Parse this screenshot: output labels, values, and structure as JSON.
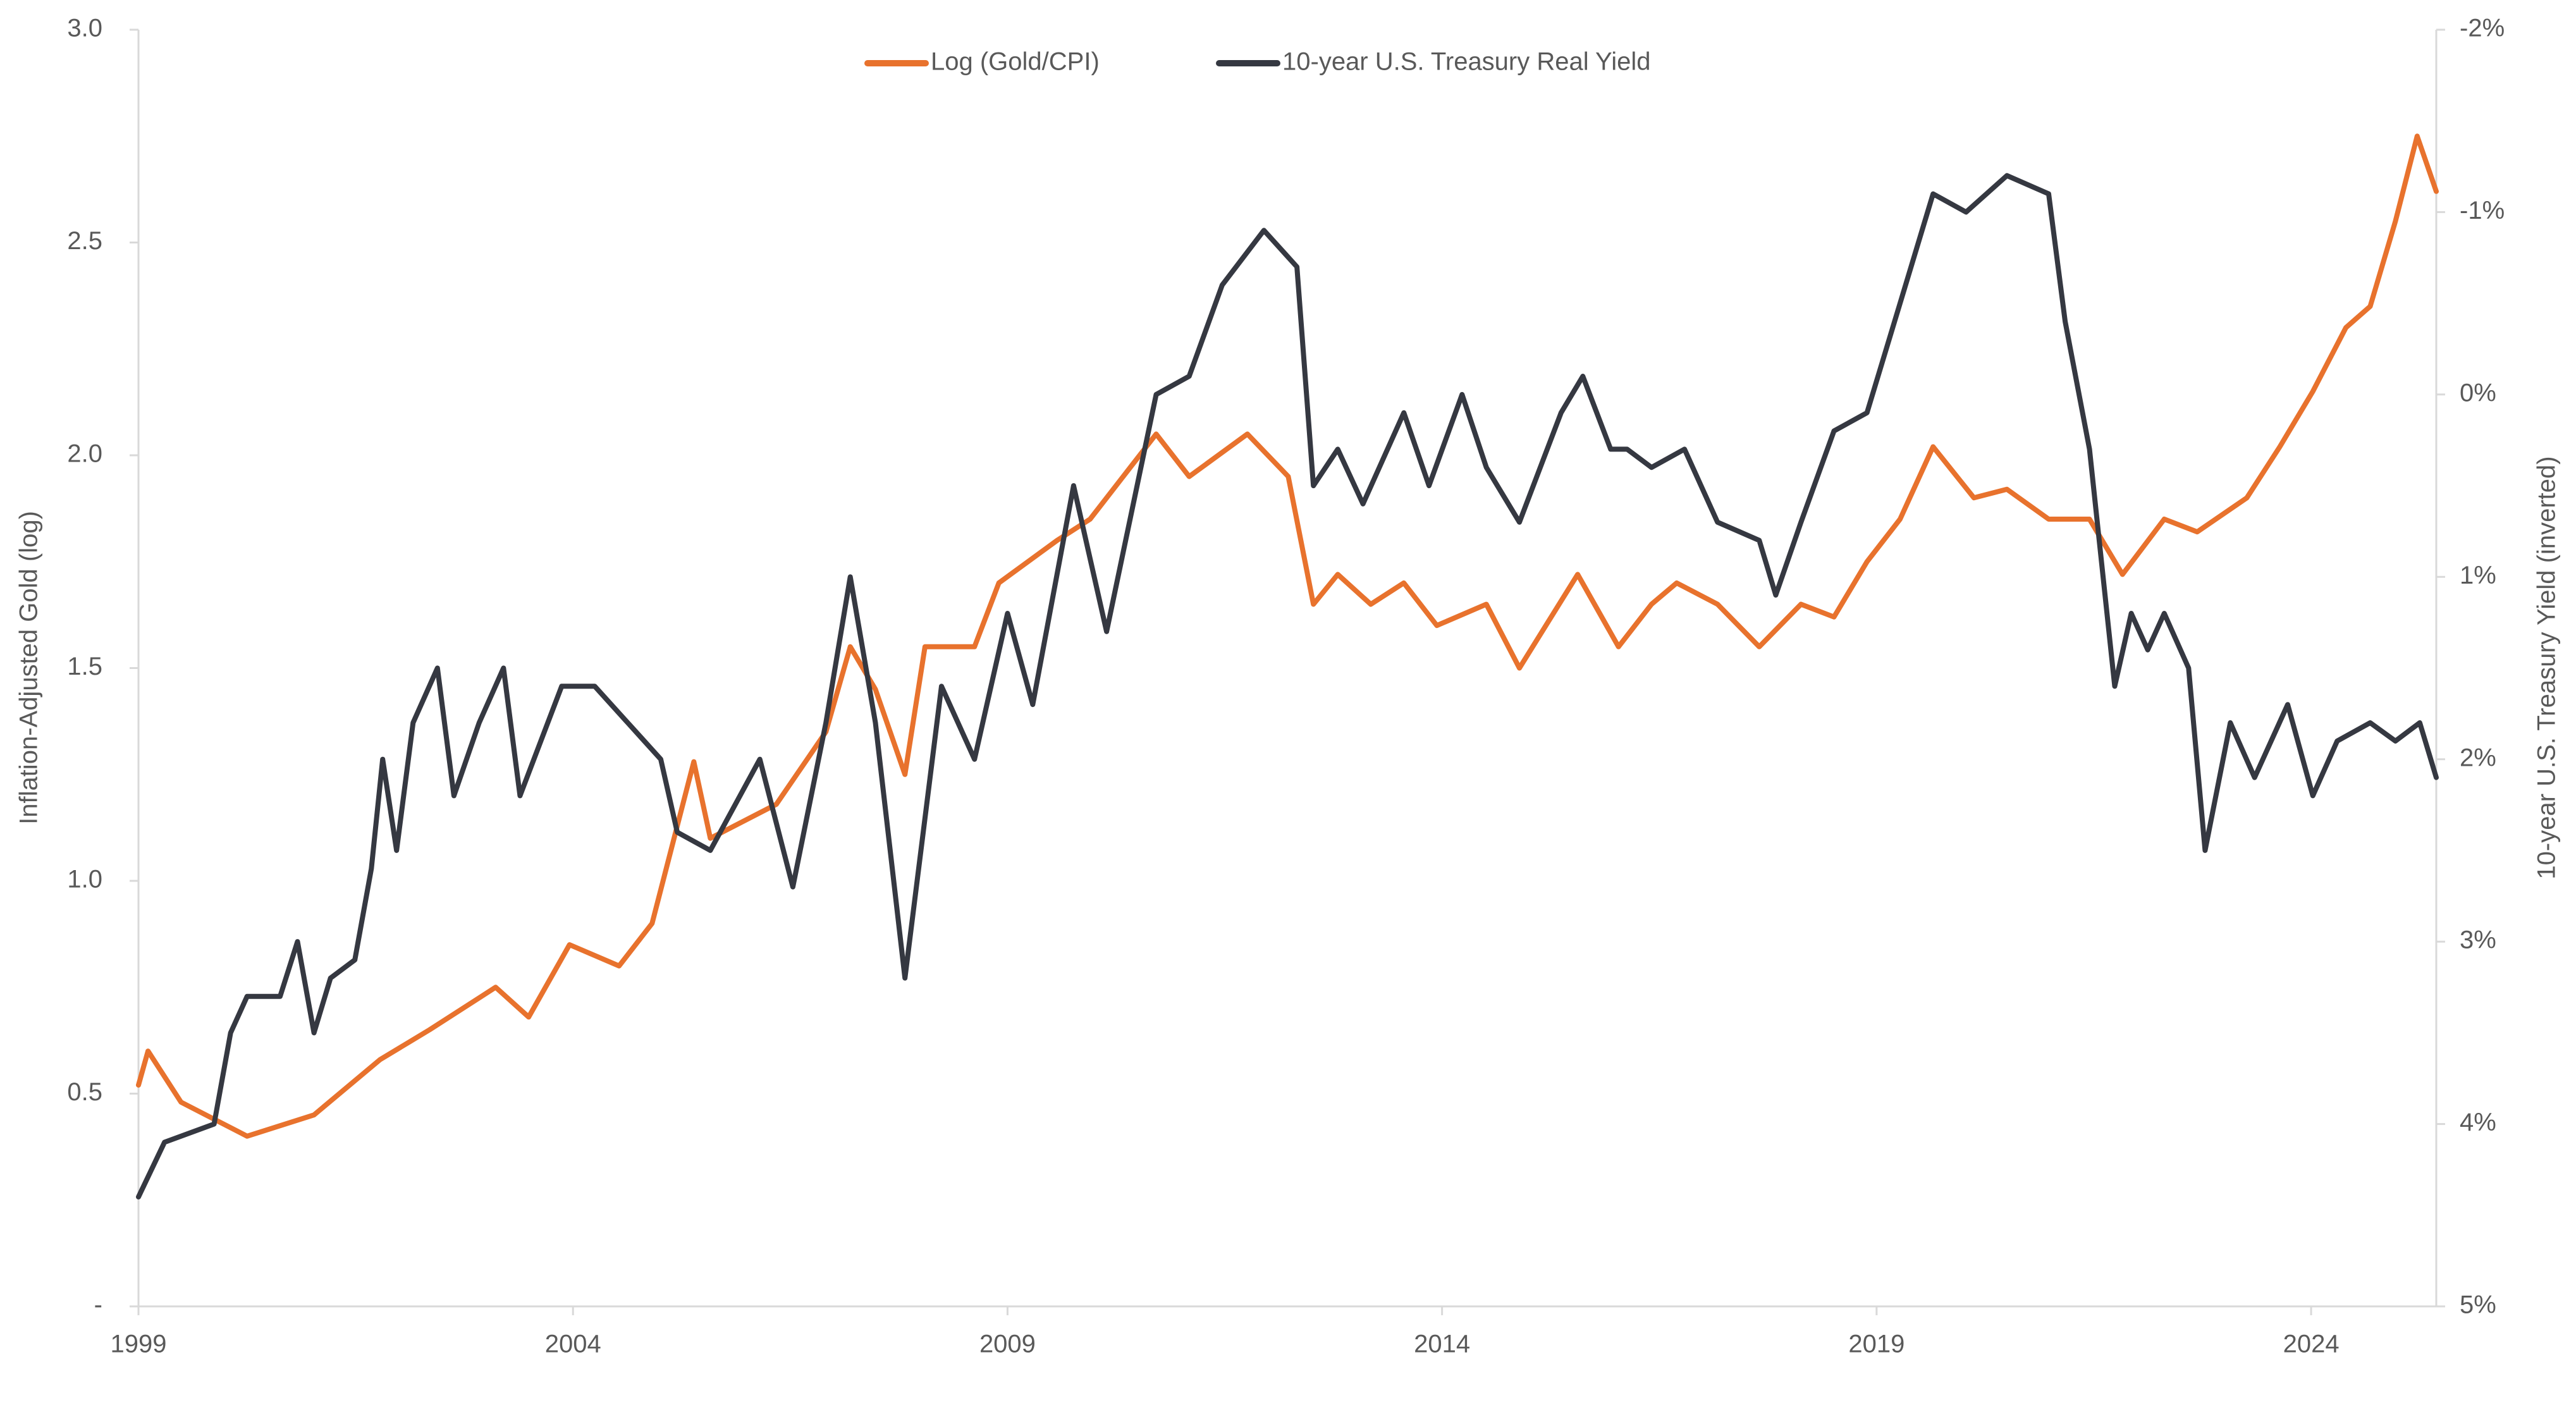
{
  "chart_data": {
    "type": "line",
    "y_label": "Inflation-Adjusted Gold (log)",
    "y2_label": "10-year U.S. Treasury Yield (inverted)",
    "legend": "top",
    "xlim": [
      1999,
      2025.44
    ],
    "xticks": [
      1999,
      2004,
      2009,
      2014,
      2019,
      2024
    ],
    "ylim": [
      0,
      3
    ],
    "yticks": [
      {
        "value": 0,
        "label": "-"
      },
      0.5,
      {
        "value": 1,
        "label": "1.0"
      },
      1.5,
      {
        "value": 2,
        "label": "2.0"
      },
      2.5,
      {
        "value": 3,
        "label": "3.0"
      }
    ],
    "y2lim": [
      -2,
      5
    ],
    "y2_inverted": true,
    "y2ticks": [
      {
        "value": -2,
        "label": "-2%"
      },
      {
        "value": -1,
        "label": "-1%"
      },
      {
        "value": 0,
        "label": "0%"
      },
      {
        "value": 1,
        "label": "1%"
      },
      {
        "value": 2,
        "label": "2%"
      },
      {
        "value": 3,
        "label": "3%"
      },
      {
        "value": 4,
        "label": "4%"
      },
      {
        "value": 5,
        "label": "5%"
      }
    ],
    "series": [
      {
        "name": "Log (Gold/CPI)",
        "color": "#e8722d",
        "axis": "y",
        "x": [
          1999,
          1999.11,
          1999.49,
          2000.25,
          2001.02,
          2001.78,
          2002.35,
          2003.11,
          2003.49,
          2003.96,
          2004.53,
          2004.91,
          2005.39,
          2005.58,
          2006.34,
          2006.91,
          2007.19,
          2007.48,
          2007.82,
          2008.05,
          2008.62,
          2008.9,
          2009.57,
          2009.95,
          2010.71,
          2011.09,
          2011.76,
          2012.23,
          2012.52,
          2012.8,
          2013.18,
          2013.56,
          2013.94,
          2014.51,
          2014.89,
          2015.56,
          2016.03,
          2016.41,
          2016.7,
          2017.17,
          2017.65,
          2018.13,
          2018.51,
          2018.89,
          2019.27,
          2019.65,
          2020.12,
          2020.5,
          2020.98,
          2021.45,
          2021.83,
          2022.31,
          2022.69,
          2023.26,
          2023.64,
          2024.02,
          2024.4,
          2024.68,
          2024.97,
          2025.22,
          2025.44
        ],
        "values": [
          0.52,
          0.6,
          0.48,
          0.4,
          0.45,
          0.58,
          0.65,
          0.75,
          0.68,
          0.85,
          0.8,
          0.9,
          1.28,
          1.1,
          1.18,
          1.35,
          1.55,
          1.45,
          1.25,
          1.55,
          1.55,
          1.7,
          1.8,
          1.85,
          2.05,
          1.95,
          2.05,
          1.95,
          1.65,
          1.72,
          1.65,
          1.7,
          1.6,
          1.65,
          1.5,
          1.72,
          1.55,
          1.65,
          1.7,
          1.65,
          1.55,
          1.65,
          1.62,
          1.75,
          1.85,
          2.02,
          1.9,
          1.92,
          1.85,
          1.85,
          1.72,
          1.85,
          1.82,
          1.9,
          2.02,
          2.15,
          2.3,
          2.35,
          2.55,
          2.75,
          2.62
        ]
      },
      {
        "name": "10-year U.S. Treasury Real Yield",
        "color": "#353841",
        "axis": "y2",
        "x": [
          1999,
          1999.3,
          1999.87,
          2000.06,
          2000.25,
          2000.63,
          2000.83,
          2001.02,
          2001.21,
          2001.49,
          2001.68,
          2001.81,
          2001.97,
          2002.16,
          2002.44,
          2002.63,
          2002.92,
          2003.2,
          2003.39,
          2003.87,
          2004.25,
          2004.63,
          2005.01,
          2005.2,
          2005.58,
          2006.15,
          2006.53,
          2006.91,
          2007.19,
          2007.48,
          2007.82,
          2008.24,
          2008.62,
          2009.0,
          2009.29,
          2009.76,
          2010.14,
          2010.71,
          2011.09,
          2011.47,
          2011.95,
          2012.33,
          2012.52,
          2012.8,
          2013.09,
          2013.56,
          2013.85,
          2014.23,
          2014.51,
          2014.89,
          2015.37,
          2015.62,
          2015.94,
          2016.13,
          2016.41,
          2016.79,
          2017.17,
          2017.65,
          2017.84,
          2018.13,
          2018.51,
          2018.89,
          2019.27,
          2019.65,
          2020.03,
          2020.5,
          2020.98,
          2021.17,
          2021.45,
          2021.74,
          2021.93,
          2022.12,
          2022.31,
          2022.59,
          2022.78,
          2023.07,
          2023.35,
          2023.73,
          2024.02,
          2024.3,
          2024.68,
          2024.97,
          2025.25,
          2025.44
        ],
        "values": [
          4.4,
          4.1,
          4.0,
          3.5,
          3.3,
          3.3,
          3.0,
          3.5,
          3.2,
          3.1,
          2.6,
          2.0,
          2.5,
          1.8,
          1.5,
          2.2,
          1.8,
          1.5,
          2.2,
          1.6,
          1.6,
          1.8,
          2.0,
          2.4,
          2.5,
          2.0,
          2.7,
          1.8,
          1.0,
          1.8,
          3.2,
          1.6,
          2.0,
          1.2,
          1.7,
          0.5,
          1.3,
          0.0,
          -0.1,
          -0.6,
          -0.9,
          -0.7,
          0.5,
          0.3,
          0.6,
          0.1,
          0.5,
          0.0,
          0.4,
          0.7,
          0.1,
          -0.1,
          0.3,
          0.3,
          0.4,
          0.3,
          0.7,
          0.8,
          1.1,
          0.7,
          0.2,
          0.1,
          -0.5,
          -1.1,
          -1.0,
          -1.2,
          -1.1,
          -0.4,
          0.3,
          1.6,
          1.2,
          1.4,
          1.2,
          1.5,
          2.5,
          1.8,
          2.1,
          1.7,
          2.2,
          1.9,
          1.8,
          1.9,
          1.8,
          2.1
        ]
      }
    ]
  }
}
